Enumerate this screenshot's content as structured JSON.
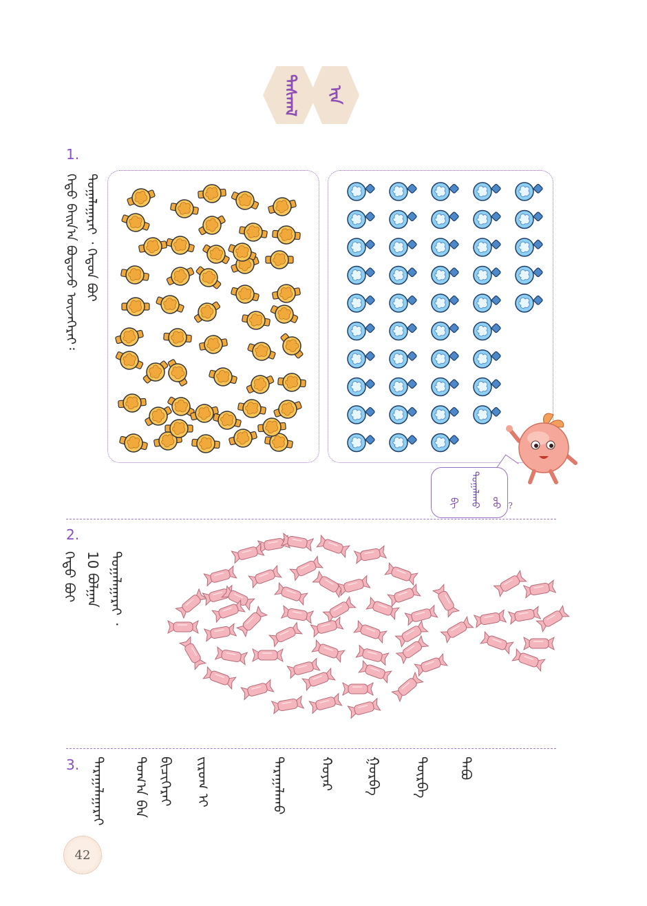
{
  "header": {
    "title_part1": "ᠳᠠᠰᠭᠠᠯ",
    "title_part2": "ᠢᠨ"
  },
  "section1": {
    "number": "1.",
    "instruction_lines": [
      "ᠬᠡᠳᠦ ᠪᠠᠢᠨ᠎ᠠ ᠪᠤᠳᠤᠵᠤ ᠦᠵᠡᠭᠡᠷᠡᠢ᠄",
      "ᠲᠣᠭᠠᠯᠠᠭᠠᠷᠠᠢ ᠂ ᠬᠡᠳᠦᠨ ᠪᠤᠢ"
    ],
    "bubble_lines": [
      "ᠪᠢ",
      "ᠲᠣᠭᠠᠯᠠᠬᠤ",
      "ᠦᠦ",
      "?"
    ],
    "yellow_box_count": 50,
    "blue_box_columns": [
      10,
      10,
      10,
      9,
      5
    ]
  },
  "section2": {
    "number": "2.",
    "instruction_lines": [
      "ᠬᠡᠳᠦ ᠪᠤᠢ",
      "10 ᠪᠣᠯᠭᠠᠨ",
      "ᠲᠣᠭᠠᠯᠠᠭᠠᠷᠠᠢ ᠂"
    ],
    "number_ten": "10"
  },
  "section3": {
    "number": "3.",
    "instruction_lines": [
      "ᠳᠠᠷᠠᠭᠠᠯᠠᠭᠠᠷᠠᠢ",
      "ᠲᠣᠭ᠎ᠠ ᠪᠠᠨ",
      "ᠪᠢᠴᠢᠭᠡᠷᠡᠢ",
      "ᠵᠢᠷᠤᠭ ᠢ"
    ],
    "words": [
      "ᠳᠠᠷᠠᠭᠠᠯᠠᠬᠤ",
      "ᠬᠣᠶᠠᠷ",
      "ᠭᠤᠷᠪᠠ",
      "ᠳᠥᠷᠪᠡ",
      "ᠲᠠᠪᠤ"
    ]
  },
  "page_number": "42",
  "colors": {
    "accent": "#8a4fbf",
    "hex_bg": "#f2e2d2",
    "yellow_item": "#f7c65a",
    "blue_item": "#8fd0f2",
    "candy": "#f4b5bd"
  }
}
